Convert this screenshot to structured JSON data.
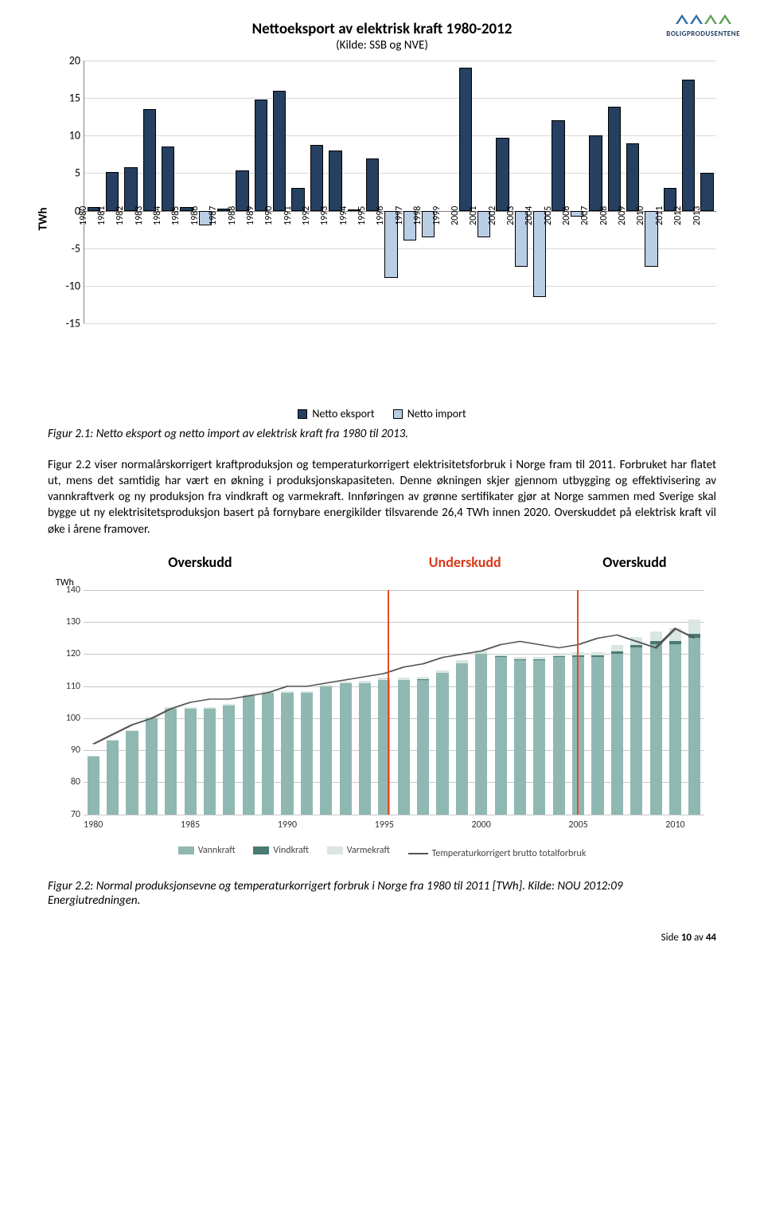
{
  "logo": {
    "text": "BOLIGPRODUSENTENE",
    "colors": [
      "#2a6ca3",
      "#2a6ca3",
      "#5aa04a",
      "#5aa04a"
    ]
  },
  "chart1": {
    "title": "Nettoeksport av elektrisk kraft 1980-2012",
    "subtitle": "(Kilde: SSB og NVE)",
    "ylabel": "TWh",
    "ylim": [
      -15,
      20
    ],
    "ytick_step": 5,
    "export_color": "#254061",
    "import_color": "#b9cde5",
    "years": [
      "1980",
      "1981",
      "1982",
      "1983",
      "1984",
      "1985",
      "1986",
      "1987",
      "1988",
      "1989",
      "1990",
      "1991",
      "1992",
      "1993",
      "1994",
      "1995",
      "1996",
      "1997",
      "1998",
      "1999",
      "2000",
      "2001",
      "2002",
      "2003",
      "2004",
      "2005",
      "2006",
      "2007",
      "2008",
      "2009",
      "2010",
      "2011",
      "2012",
      "2013"
    ],
    "export_vals": [
      0.5,
      5.2,
      5.8,
      13.5,
      8.5,
      0.5,
      0,
      0.3,
      5.4,
      14.8,
      16,
      3,
      8.8,
      8,
      0.2,
      7,
      0,
      0,
      0,
      0,
      19,
      0,
      9.7,
      0,
      0,
      12,
      0,
      10,
      13.8,
      9,
      0,
      3,
      17.5,
      5
    ],
    "import_vals": [
      0,
      0,
      0,
      0,
      0,
      0,
      -2,
      0,
      0,
      0,
      0,
      0,
      0,
      0,
      0,
      0,
      -9,
      -4,
      -3.5,
      0,
      0,
      -3.5,
      0,
      -7.5,
      -11.5,
      0,
      -0.8,
      0,
      0,
      0,
      -7.5,
      0,
      0,
      0
    ],
    "legend": {
      "export": "Netto eksport",
      "import": "Netto import"
    }
  },
  "caption1": "Figur 2.1: Netto eksport og netto import av elektrisk kraft fra 1980 til 2013.",
  "para1": "Figur 2.2 viser normalårskorrigert kraftproduksjon og temperaturkorrigert elektrisitetsforbruk i Norge fram til 2011. Forbruket har flatet ut, mens det samtidig har vært en økning i produksjonskapasiteten. Denne økningen skjer gjennom utbygging og effektivisering av vannkraftverk og ny produksjon fra vindkraft og varmekraft. Innføringen av grønne sertifikater gjør at Norge sammen med Sverige skal bygge ut ny elektrisitetsproduksjon basert på fornybare energikilder tilsvarende 26,4 TWh innen 2020. Overskuddet på elektrisk kraft vil øke i årene framover.",
  "chart2": {
    "sections": [
      {
        "label": "Overskudd",
        "color": "#000000",
        "left_pct": 18
      },
      {
        "label": "Underskudd",
        "color": "#d93a1a",
        "left_pct": 57
      },
      {
        "label": "Overskudd",
        "color": "#000000",
        "left_pct": 83
      }
    ],
    "ylabel": "TWh",
    "ylim": [
      70,
      140
    ],
    "ytick_step": 10,
    "xlabels": [
      "1980",
      "1985",
      "1990",
      "1995",
      "2000",
      "2005",
      "2010"
    ],
    "colors": {
      "vann": "#8fb8b2",
      "vind": "#4a7a72",
      "varme": "#d9e6e3",
      "line": "#555555",
      "divider": "#e84a27"
    },
    "dividers_pct": [
      49,
      79.5
    ],
    "bars": [
      {
        "v": 88,
        "w": 0,
        "h": 0.3
      },
      {
        "v": 93,
        "w": 0,
        "h": 0.3
      },
      {
        "v": 96,
        "w": 0,
        "h": 0.3
      },
      {
        "v": 100,
        "w": 0,
        "h": 0.4
      },
      {
        "v": 103,
        "w": 0,
        "h": 0.4
      },
      {
        "v": 103,
        "w": 0,
        "h": 0.4
      },
      {
        "v": 103,
        "w": 0,
        "h": 0.4
      },
      {
        "v": 104,
        "w": 0,
        "h": 0.5
      },
      {
        "v": 107,
        "w": 0,
        "h": 0.5
      },
      {
        "v": 108,
        "w": 0,
        "h": 0.5
      },
      {
        "v": 108,
        "w": 0,
        "h": 0.5
      },
      {
        "v": 108,
        "w": 0,
        "h": 0.5
      },
      {
        "v": 110,
        "w": 0,
        "h": 0.5
      },
      {
        "v": 111,
        "w": 0,
        "h": 0.5
      },
      {
        "v": 111,
        "w": 0,
        "h": 0.6
      },
      {
        "v": 112,
        "w": 0,
        "h": 0.6
      },
      {
        "v": 112,
        "w": 0,
        "h": 0.6
      },
      {
        "v": 112,
        "w": 0.1,
        "h": 0.7
      },
      {
        "v": 114,
        "w": 0.1,
        "h": 0.7
      },
      {
        "v": 117,
        "w": 0.2,
        "h": 0.8
      },
      {
        "v": 120,
        "w": 0.2,
        "h": 0.8
      },
      {
        "v": 119,
        "w": 0.3,
        "h": 0.8
      },
      {
        "v": 118,
        "w": 0.3,
        "h": 0.8
      },
      {
        "v": 118,
        "w": 0.3,
        "h": 0.9
      },
      {
        "v": 119,
        "w": 0.4,
        "h": 1.0
      },
      {
        "v": 119,
        "w": 0.5,
        "h": 1.0
      },
      {
        "v": 119,
        "w": 0.6,
        "h": 1.0
      },
      {
        "v": 120,
        "w": 0.8,
        "h": 2.0
      },
      {
        "v": 122,
        "w": 0.9,
        "h": 2.5
      },
      {
        "v": 123,
        "w": 1.0,
        "h": 3.0
      },
      {
        "v": 123,
        "w": 1.0,
        "h": 4.0
      },
      {
        "v": 125,
        "w": 1.2,
        "h": 4.5
      }
    ],
    "trend": [
      92,
      95,
      98,
      100,
      103,
      105,
      106,
      106,
      107,
      108,
      110,
      110,
      111,
      112,
      113,
      114,
      116,
      117,
      119,
      120,
      121,
      123,
      124,
      123,
      122,
      123,
      125,
      126,
      124,
      122,
      128,
      125
    ],
    "legend": {
      "vann": "Vannkraft",
      "vind": "Vindkraft",
      "varme": "Varmekraft",
      "line": "Temperaturkorrigert brutto totalforbruk"
    }
  },
  "caption2": "Figur 2.2: Normal produksjonsevne og temperaturkorrigert forbruk i Norge fra 1980 til 2011 [TWh]. Kilde: NOU 2012:09 Energiutredningen.",
  "footer": {
    "label": "Side",
    "page": "10",
    "of": "av",
    "total": "44"
  }
}
